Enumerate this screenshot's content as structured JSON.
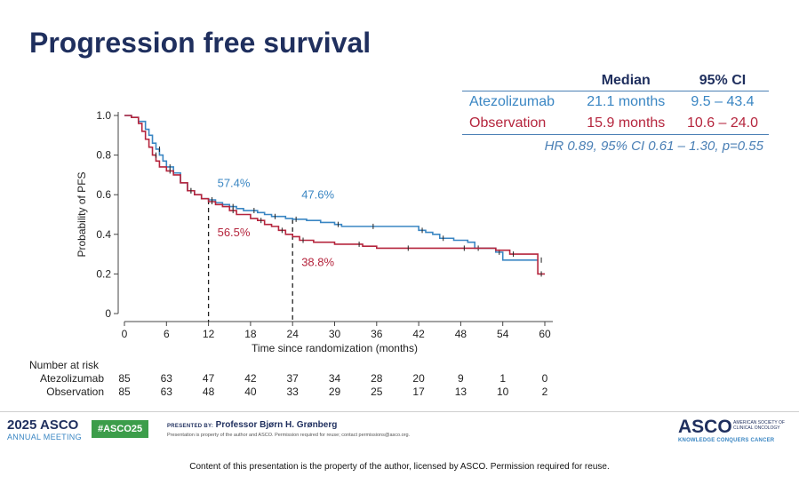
{
  "title": "Progression free survival",
  "stats_table": {
    "header": [
      "",
      "Median",
      "95% CI"
    ],
    "rows": [
      {
        "group": "Atezolizumab",
        "median": "21.1 months",
        "ci": "9.5 – 43.4",
        "color": "#3a86c3"
      },
      {
        "group": "Observation",
        "median": "15.9 months",
        "ci": "10.6 – 24.0",
        "color": "#b5253d"
      }
    ],
    "hr_text": "HR 0.89, 95% CI 0.61 – 1.30, p=0.55"
  },
  "chart_data": {
    "type": "line",
    "subtype": "kaplan-meier step",
    "xlabel": "Time since randomization (months)",
    "ylabel": "Probability of PFS",
    "xlim": [
      0,
      60
    ],
    "ylim": [
      0,
      1.0
    ],
    "xticks": [
      0,
      6,
      12,
      18,
      24,
      30,
      36,
      42,
      48,
      54,
      60
    ],
    "yticks": [
      "0",
      "0.2",
      "0.4",
      "0.6",
      "0.8",
      "1.0"
    ],
    "ytick_values": [
      0,
      0.2,
      0.4,
      0.6,
      0.8,
      1.0
    ],
    "series": [
      {
        "name": "Atezolizumab",
        "color": "#3a86c3",
        "x": [
          0,
          1,
          2,
          3,
          3.5,
          4,
          4.5,
          5,
          5.5,
          6,
          7,
          8,
          9,
          10,
          11,
          12,
          13,
          14,
          15,
          16,
          17,
          18,
          19,
          20,
          21,
          22,
          23,
          24,
          26,
          28,
          30,
          31,
          33,
          35,
          38,
          40,
          42,
          43,
          44,
          45,
          47,
          49,
          50,
          51,
          52,
          53,
          54,
          57,
          59
        ],
        "y": [
          1.0,
          0.99,
          0.97,
          0.93,
          0.9,
          0.86,
          0.83,
          0.8,
          0.77,
          0.74,
          0.71,
          0.66,
          0.62,
          0.6,
          0.58,
          0.574,
          0.56,
          0.55,
          0.54,
          0.53,
          0.52,
          0.52,
          0.51,
          0.5,
          0.49,
          0.49,
          0.48,
          0.476,
          0.47,
          0.46,
          0.45,
          0.44,
          0.44,
          0.44,
          0.44,
          0.44,
          0.42,
          0.41,
          0.4,
          0.38,
          0.37,
          0.36,
          0.33,
          0.33,
          0.33,
          0.31,
          0.27,
          0.27,
          0.27
        ],
        "annotations": [
          {
            "x": 12,
            "text": "57.4%"
          },
          {
            "x": 24,
            "text": "47.6%"
          }
        ]
      },
      {
        "name": "Observation",
        "color": "#b5253d",
        "x": [
          0,
          1,
          2,
          2.5,
          3,
          3.5,
          4,
          4.5,
          5,
          6,
          7,
          8,
          9,
          10,
          11,
          12,
          13,
          14,
          15,
          16,
          18,
          19,
          20,
          21,
          22,
          23,
          24,
          25,
          27,
          30,
          33,
          34,
          36,
          40,
          42,
          45,
          48,
          50,
          53,
          55,
          57,
          58,
          59,
          60
        ],
        "y": [
          1.0,
          0.99,
          0.96,
          0.92,
          0.88,
          0.84,
          0.8,
          0.77,
          0.74,
          0.72,
          0.7,
          0.66,
          0.62,
          0.6,
          0.58,
          0.565,
          0.55,
          0.54,
          0.52,
          0.5,
          0.48,
          0.47,
          0.45,
          0.44,
          0.42,
          0.4,
          0.388,
          0.37,
          0.36,
          0.35,
          0.35,
          0.34,
          0.33,
          0.33,
          0.33,
          0.33,
          0.33,
          0.33,
          0.32,
          0.3,
          0.3,
          0.3,
          0.2,
          0.2
        ],
        "annotations": [
          {
            "x": 12,
            "text": "56.5%"
          },
          {
            "x": 24,
            "text": "38.8%"
          }
        ]
      }
    ],
    "reference_lines": [
      {
        "x": 12,
        "y": 0.574
      },
      {
        "x": 24,
        "y": 0.476
      }
    ],
    "number_at_risk": {
      "label": "Number at risk",
      "times": [
        0,
        6,
        12,
        18,
        24,
        30,
        36,
        42,
        48,
        54,
        60
      ],
      "rows": [
        {
          "name": "Atezolizumab",
          "values": [
            "85",
            "63",
            "47",
            "42",
            "37",
            "34",
            "28",
            "20",
            "9",
            "1",
            "0"
          ]
        },
        {
          "name": "Observation",
          "values": [
            "85",
            "63",
            "48",
            "40",
            "33",
            "29",
            "25",
            "17",
            "13",
            "10",
            "2"
          ]
        }
      ]
    }
  },
  "footer": {
    "meeting_big": "2025 ASCO",
    "meeting_small": "ANNUAL MEETING",
    "hashtag": "#ASCO25",
    "presented_by_label": "PRESENTED BY:",
    "presenter": "Professor Bjørn H. Grønberg",
    "presenter_note": "Presentation is property of the author and ASCO. Permission required for reuse; contact permissions@asco.org.",
    "asco_brand": "ASCO",
    "asco_society": "AMERICAN SOCIETY OF CLINICAL ONCOLOGY",
    "asco_tagline": "KNOWLEDGE CONQUERS CANCER",
    "copyright": "Content of this presentation is the property of the author, licensed by ASCO. Permission required for reuse."
  }
}
